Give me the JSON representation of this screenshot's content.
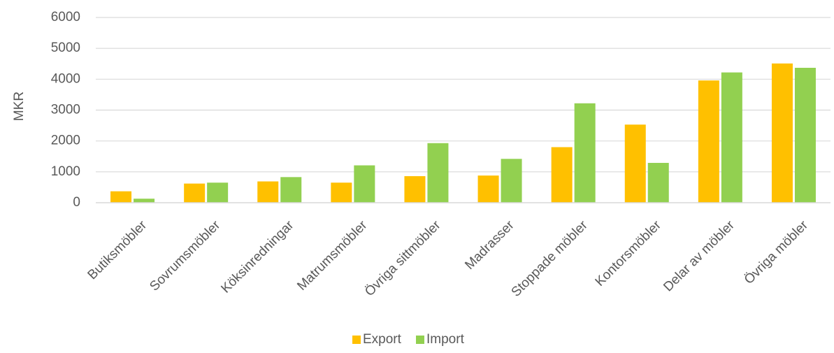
{
  "chart_data": {
    "type": "bar",
    "title": "",
    "xlabel": "",
    "ylabel": "MKR",
    "ylim": [
      0,
      6000
    ],
    "yticks": [
      0,
      1000,
      2000,
      3000,
      4000,
      5000,
      6000
    ],
    "grid": true,
    "legend_position": "bottom",
    "categories": [
      "Butiksmöbler",
      "Sovrumsmöbler",
      "Köksinredningar",
      "Matrumsmöbler",
      "Övriga sittmöbler",
      "Madrasser",
      "Stoppade möbler",
      "Kontorsmöbler",
      "Delar av möbler",
      "Övriga möbler"
    ],
    "series": [
      {
        "name": "Export",
        "color": "#FFC000",
        "values": [
          370,
          620,
          690,
          650,
          860,
          880,
          1800,
          2530,
          3960,
          4510
        ]
      },
      {
        "name": "Import",
        "color": "#92D050",
        "values": [
          130,
          650,
          830,
          1210,
          1930,
          1420,
          3220,
          1290,
          4220,
          4370
        ]
      }
    ]
  }
}
